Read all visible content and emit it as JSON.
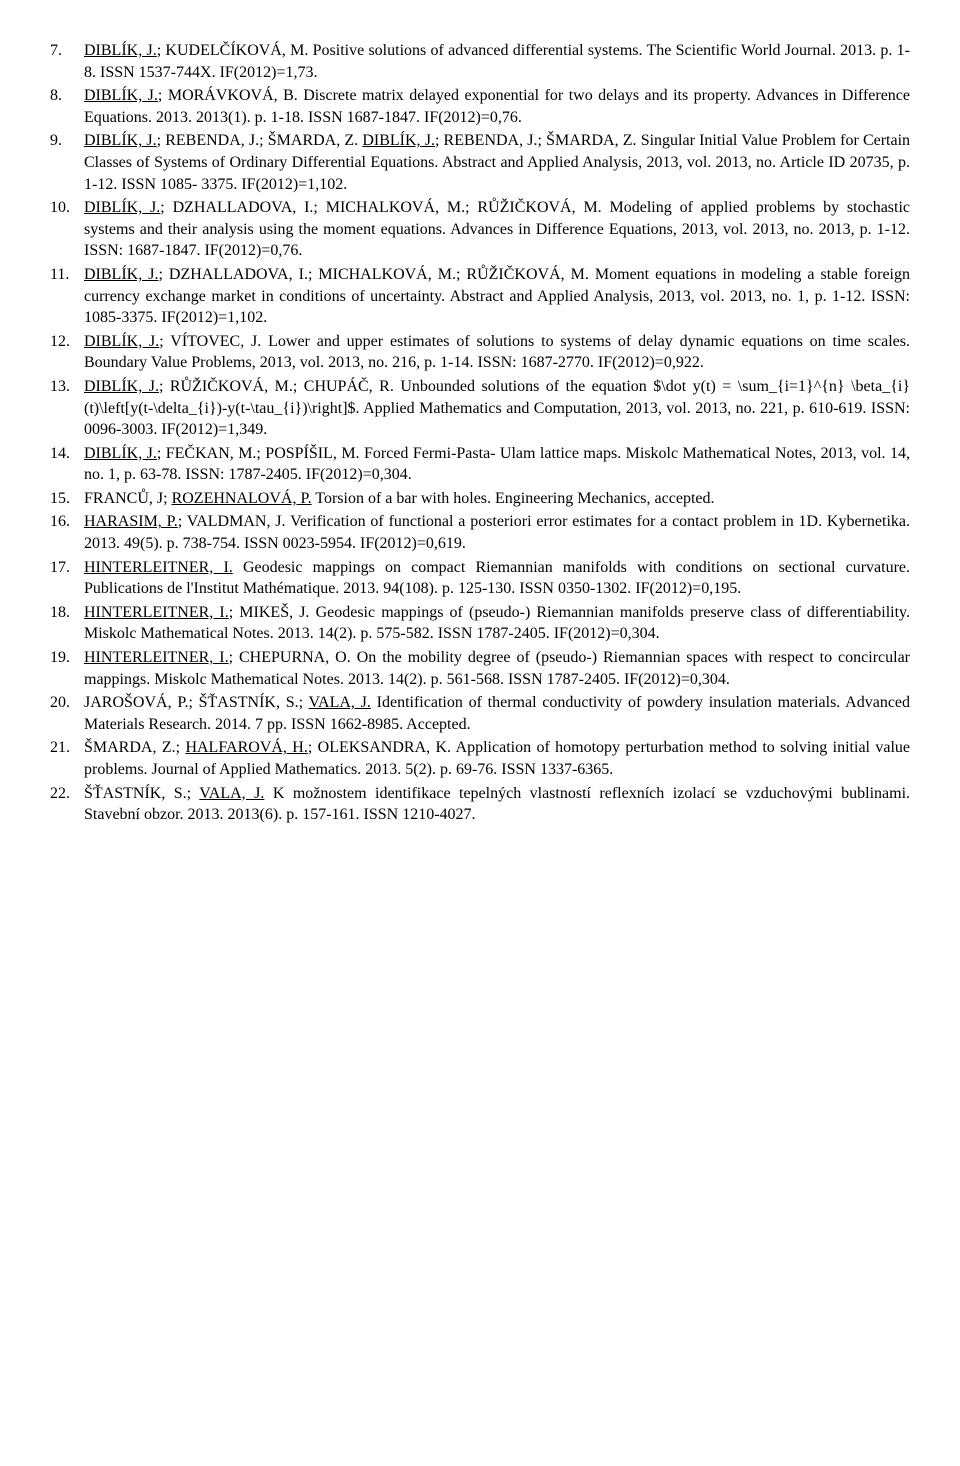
{
  "refs": [
    {
      "authors": [
        {
          "t": "DIBLÍK, J.",
          "u": true
        },
        {
          "t": "; KUDELČÍKOVÁ, M. ",
          "u": false
        }
      ],
      "rest": "Positive solutions of advanced differential systems. The Scientific World Journal. 2013. p. 1-8. ISSN 1537-744X. IF(2012)=1,73."
    },
    {
      "authors": [
        {
          "t": "DIBLÍK, J.",
          "u": true
        },
        {
          "t": "; MORÁVKOVÁ, B. ",
          "u": false
        }
      ],
      "rest": "Discrete matrix delayed exponential for two delays and its property. Advances in Difference Equations. 2013. 2013(1). p. 1-18. ISSN 1687-1847. IF(2012)=0,76."
    },
    {
      "authors": [
        {
          "t": "DIBLÍK, J.",
          "u": true
        },
        {
          "t": "; REBENDA, J.; ŠMARDA, Z. ",
          "u": false
        },
        {
          "t": "DIBLÍK, J.",
          "u": true
        },
        {
          "t": "; REBENDA, J.; ŠMARDA, Z. ",
          "u": false
        }
      ],
      "rest": "Singular Initial Value Problem for Certain Classes of Systems of Ordinary Differential Equations. Abstract and Applied Analysis, 2013, vol. 2013, no. Article ID 20735, p. 1-12. ISSN 1085- 3375. IF(2012)=1,102."
    },
    {
      "authors": [
        {
          "t": "DIBLÍK, J.",
          "u": true
        },
        {
          "t": "; DZHALLADOVA, I.; MICHALKOVÁ, M.; RŮŽIČKOVÁ, M. ",
          "u": false
        }
      ],
      "rest": "Modeling of applied problems by stochastic systems and their analysis using the moment equations. Advances in Difference Equations, 2013, vol. 2013, no. 2013, p. 1-12. ISSN: 1687-1847. IF(2012)=0,76."
    },
    {
      "authors": [
        {
          "t": "DIBLÍK, J.",
          "u": true
        },
        {
          "t": "; DZHALLADOVA, I.; MICHALKOVÁ, M.; RŮŽIČKOVÁ, M. ",
          "u": false
        }
      ],
      "rest": "Moment equations in modeling a stable foreign currency exchange market in conditions of uncertainty. Abstract and Applied Analysis, 2013, vol. 2013, no. 1, p. 1-12. ISSN: 1085-3375. IF(2012)=1,102."
    },
    {
      "authors": [
        {
          "t": "DIBLÍK, J.",
          "u": true
        },
        {
          "t": "; VÍTOVEC, J. ",
          "u": false
        }
      ],
      "rest": "Lower and upper estimates of solutions to systems of delay dynamic equations on time scales. Boundary Value Problems, 2013, vol. 2013, no. 216, p. 1-14. ISSN: 1687-2770. IF(2012)=0,922."
    },
    {
      "authors": [
        {
          "t": "DIBLÍK, J.",
          "u": true
        },
        {
          "t": "; RŮŽIČKOVÁ, M.; CHUPÁČ, R. ",
          "u": false
        }
      ],
      "rest": "Unbounded solutions of the equation $\\dot y(t) = \\sum_{i=1}^{n} \\beta_{i}(t)\\left[y(t-\\delta_{i})-y(t-\\tau_{i})\\right]$. Applied Mathematics and Computation, 2013, vol. 2013, no. 221, p. 610-619. ISSN: 0096-3003. IF(2012)=1,349."
    },
    {
      "authors": [
        {
          "t": "DIBLÍK, J.",
          "u": true
        },
        {
          "t": "; FEČKAN, M.; POSPÍŠIL, M. ",
          "u": false
        }
      ],
      "rest": "Forced Fermi-Pasta- Ulam lattice maps. Miskolc Mathematical Notes, 2013, vol. 14, no. 1, p. 63-78. ISSN: 1787-2405. IF(2012)=0,304."
    },
    {
      "authors": [
        {
          "t": "FRANCŮ, J; ",
          "u": false
        },
        {
          "t": "ROZEHNALOVÁ, P.",
          "u": true
        },
        {
          "t": " ",
          "u": false
        }
      ],
      "rest": "Torsion of a bar with holes. Engineering Mechanics, accepted."
    },
    {
      "authors": [
        {
          "t": "HARASIM, P.",
          "u": true
        },
        {
          "t": "; VALDMAN, J. ",
          "u": false
        }
      ],
      "rest": "Verification of functional a posteriori error estimates for a contact problem in 1D. Kybernetika. 2013. 49(5). p. 738-754. ISSN 0023-5954. IF(2012)=0,619."
    },
    {
      "authors": [
        {
          "t": "HINTERLEITNER, I.",
          "u": true
        },
        {
          "t": " ",
          "u": false
        }
      ],
      "rest": "Geodesic mappings on compact Riemannian manifolds with conditions on sectional curvature. Publications de l'Institut Mathématique. 2013. 94(108). p. 125-130. ISSN 0350-1302. IF(2012)=0,195."
    },
    {
      "authors": [
        {
          "t": "HINTERLEITNER, I.",
          "u": true
        },
        {
          "t": "; MIKEŠ, J. ",
          "u": false
        }
      ],
      "rest": "Geodesic mappings of (pseudo-) Riemannian manifolds preserve class of differentiability. Miskolc Mathematical Notes. 2013. 14(2). p. 575-582. ISSN 1787-2405. IF(2012)=0,304."
    },
    {
      "authors": [
        {
          "t": "HINTERLEITNER, I.",
          "u": true
        },
        {
          "t": "; CHEPURNA, O. ",
          "u": false
        }
      ],
      "rest": "On the mobility degree of (pseudo-) Riemannian spaces with respect to concircular mappings. Miskolc Mathematical Notes. 2013. 14(2). p. 561-568. ISSN 1787-2405. IF(2012)=0,304."
    },
    {
      "authors": [
        {
          "t": "JAROŠOVÁ, P.; ŠŤASTNÍK, S.; ",
          "u": false
        },
        {
          "t": "VALA, J.",
          "u": true
        },
        {
          "t": " ",
          "u": false
        }
      ],
      "rest": "Identification of thermal conductivity of powdery insulation materials. Advanced Materials Research. 2014. 7 pp. ISSN 1662-8985. Accepted."
    },
    {
      "authors": [
        {
          "t": "ŠMARDA, Z.; ",
          "u": false
        },
        {
          "t": "HALFAROVÁ, H.",
          "u": true
        },
        {
          "t": "; OLEKSANDRA, K. ",
          "u": false
        }
      ],
      "rest": "Application of homotopy perturbation method to solving initial value problems. Journal of Applied Mathematics. 2013. 5(2). p. 69-76. ISSN 1337-6365."
    },
    {
      "authors": [
        {
          "t": "ŠŤASTNÍK, S.; ",
          "u": false
        },
        {
          "t": "VALA, J.",
          "u": true
        },
        {
          "t": " ",
          "u": false
        }
      ],
      "rest": "K možnostem identifikace tepelných vlastností reflexních izolací se vzduchovými bublinami. Stavební obzor. 2013. 2013(6). p. 157-161. ISSN 1210-4027."
    }
  ]
}
